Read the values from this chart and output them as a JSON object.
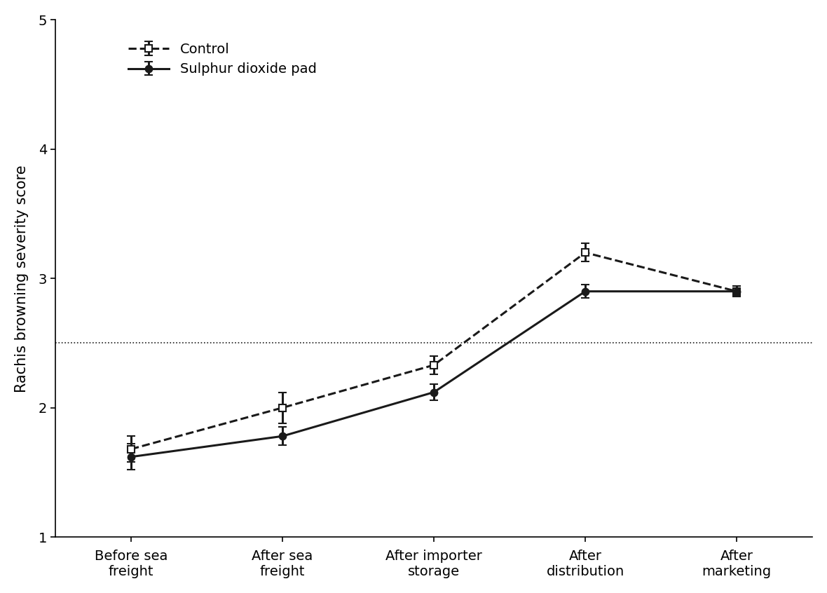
{
  "x_labels": [
    "Before sea\nfreight",
    "After sea\nfreight",
    "After importer\nstorage",
    "After\ndistribution",
    "After\nmarketing"
  ],
  "x_positions": [
    0,
    1,
    2,
    3,
    4
  ],
  "control_y": [
    1.68,
    2.0,
    2.33,
    3.2,
    2.9
  ],
  "control_yerr": [
    0.1,
    0.12,
    0.07,
    0.07,
    0.04
  ],
  "so2_y": [
    1.62,
    1.78,
    2.12,
    2.9,
    2.9
  ],
  "so2_yerr": [
    0.1,
    0.07,
    0.06,
    0.05,
    0.04
  ],
  "ylabel": "Rachis browning severity score",
  "ylim": [
    1,
    5
  ],
  "yticks": [
    1,
    2,
    3,
    4,
    5
  ],
  "hline_y": 2.5,
  "legend_control": "Control",
  "legend_so2": "Sulphur dioxide pad",
  "line_color": "#1a1a1a",
  "marker_control": "s",
  "marker_so2": "o",
  "marker_size": 7,
  "linewidth": 2.2,
  "figsize": [
    11.8,
    8.46
  ],
  "dpi": 100
}
